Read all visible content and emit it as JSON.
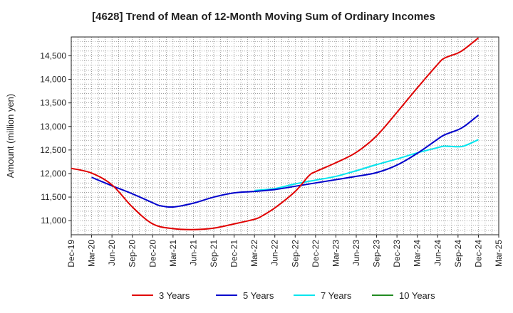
{
  "chart_data": {
    "type": "line",
    "title": "[4628]  Trend of Mean of 12-Month Moving Sum of Ordinary Incomes",
    "xlabel": "",
    "ylabel": "Amount (million yen)",
    "ylim": [
      10700,
      14900
    ],
    "yticks": [
      11000,
      11500,
      12000,
      12500,
      13000,
      13500,
      14000,
      14500
    ],
    "ytick_labels": [
      "11,000",
      "11,500",
      "12,000",
      "12,500",
      "13,000",
      "13,500",
      "14,000",
      "14,500"
    ],
    "xticks": [
      0,
      3,
      6,
      9,
      12,
      15,
      18,
      21,
      24,
      27,
      30,
      33,
      36,
      39,
      42,
      45,
      48,
      51,
      54,
      57,
      60,
      63
    ],
    "xtick_labels": [
      "Dec-19",
      "Mar-20",
      "Jun-20",
      "Sep-20",
      "Dec-20",
      "Mar-21",
      "Jun-21",
      "Sep-21",
      "Dec-21",
      "Mar-22",
      "Jun-22",
      "Sep-22",
      "Dec-22",
      "Mar-23",
      "Jun-23",
      "Sep-23",
      "Dec-23",
      "Mar-24",
      "Jun-24",
      "Sep-24",
      "Dec-24",
      "Mar-25"
    ],
    "xlim": [
      0,
      63
    ],
    "grid": true,
    "legend_position": "bottom",
    "series": [
      {
        "name": "3 Years",
        "color": "#e00000",
        "points": [
          [
            0,
            12110
          ],
          [
            3,
            12010
          ],
          [
            6,
            11760
          ],
          [
            9,
            11290
          ],
          [
            12,
            10930
          ],
          [
            15,
            10830
          ],
          [
            18,
            10810
          ],
          [
            21,
            10840
          ],
          [
            24,
            10930
          ],
          [
            27,
            11030
          ],
          [
            28,
            11090
          ],
          [
            30,
            11270
          ],
          [
            33,
            11620
          ],
          [
            35,
            11950
          ],
          [
            36,
            12040
          ],
          [
            39,
            12230
          ],
          [
            42,
            12450
          ],
          [
            45,
            12800
          ],
          [
            48,
            13300
          ],
          [
            51,
            13820
          ],
          [
            54,
            14320
          ],
          [
            55,
            14450
          ],
          [
            57,
            14560
          ],
          [
            58,
            14650
          ],
          [
            60,
            14880
          ]
        ]
      },
      {
        "name": "5 Years",
        "color": "#0000cc",
        "points": [
          [
            3,
            11920
          ],
          [
            6,
            11740
          ],
          [
            9,
            11570
          ],
          [
            12,
            11380
          ],
          [
            13,
            11320
          ],
          [
            15,
            11290
          ],
          [
            18,
            11370
          ],
          [
            21,
            11500
          ],
          [
            24,
            11590
          ],
          [
            27,
            11620
          ],
          [
            30,
            11660
          ],
          [
            33,
            11730
          ],
          [
            36,
            11800
          ],
          [
            39,
            11870
          ],
          [
            42,
            11940
          ],
          [
            45,
            12020
          ],
          [
            48,
            12180
          ],
          [
            51,
            12430
          ],
          [
            54,
            12730
          ],
          [
            55,
            12820
          ],
          [
            57,
            12930
          ],
          [
            58,
            13010
          ],
          [
            60,
            13240
          ]
        ]
      },
      {
        "name": "7 Years",
        "color": "#00e5ee",
        "points": [
          [
            27,
            11640
          ],
          [
            30,
            11680
          ],
          [
            33,
            11780
          ],
          [
            36,
            11860
          ],
          [
            39,
            11940
          ],
          [
            42,
            12060
          ],
          [
            45,
            12190
          ],
          [
            48,
            12310
          ],
          [
            51,
            12440
          ],
          [
            54,
            12550
          ],
          [
            55,
            12580
          ],
          [
            57,
            12570
          ],
          [
            58,
            12590
          ],
          [
            60,
            12720
          ]
        ]
      },
      {
        "name": "10 Years",
        "color": "#228b22",
        "points": []
      }
    ]
  }
}
